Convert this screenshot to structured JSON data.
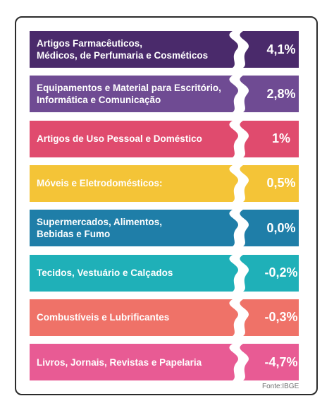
{
  "chart_data": {
    "type": "bar",
    "categories": [
      "Artigos Farmacêuticos,\nMédicos, de Perfumaria e Cosméticos",
      "Equipamentos e Material para Escritório,\nInformática e Comunicação",
      "Artigos de Uso Pessoal e Doméstico",
      "Móveis e Eletrodomésticos:",
      "Supermercados, Alimentos,\nBebidas e Fumo",
      "Tecidos, Vestuário e Calçados",
      "Combustíveis e Lubrificantes",
      "Livros, Jornais, Revistas e Papelaria"
    ],
    "values": [
      4.1,
      2.8,
      1,
      0.5,
      0.0,
      -0.2,
      -0.3,
      -4.7
    ],
    "value_labels": [
      "4,1%",
      "2,8%",
      "1%",
      "0,5%",
      "0,0%",
      "-0,2%",
      "-0,3%",
      "-4,7%"
    ],
    "colors": [
      "#4a2a6b",
      "#6f4b93",
      "#e04b6e",
      "#f4c437",
      "#1f7ea8",
      "#1fb0b8",
      "#ef7268",
      "#e85b94"
    ],
    "source": "Fonte:IBGE"
  }
}
